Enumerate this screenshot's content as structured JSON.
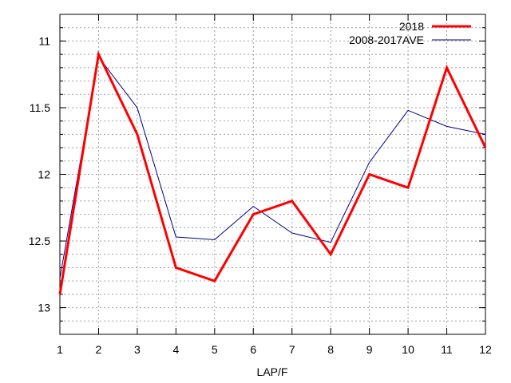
{
  "chart_data": {
    "type": "line",
    "title": "",
    "xlabel": "LAP/F",
    "ylabel": "",
    "x": [
      1,
      2,
      3,
      4,
      5,
      6,
      7,
      8,
      9,
      10,
      11,
      12
    ],
    "xlim": [
      1,
      12
    ],
    "ylim": [
      13.2,
      10.8
    ],
    "y_inverted": true,
    "xticks": [
      "1",
      "2",
      "3",
      "4",
      "5",
      "6",
      "7",
      "8",
      "9",
      "10",
      "11",
      "12"
    ],
    "yticks": [
      11,
      11.5,
      12,
      12.5,
      13
    ],
    "ytick_labels": [
      "11",
      "11.5",
      "12",
      "12.5",
      "13"
    ],
    "grid": true,
    "legend_position": "top-right",
    "series": [
      {
        "name": "2018",
        "color": "#ff0000",
        "values": [
          12.9,
          11.1,
          11.7,
          12.7,
          12.8,
          12.3,
          12.2,
          12.6,
          12.0,
          12.1,
          11.2,
          11.8
        ]
      },
      {
        "name": "2008-2017AVE",
        "color": "#00008b",
        "values": [
          12.78,
          11.12,
          11.5,
          12.47,
          12.49,
          12.24,
          12.44,
          12.51,
          11.91,
          11.52,
          11.64,
          11.7
        ]
      }
    ]
  }
}
